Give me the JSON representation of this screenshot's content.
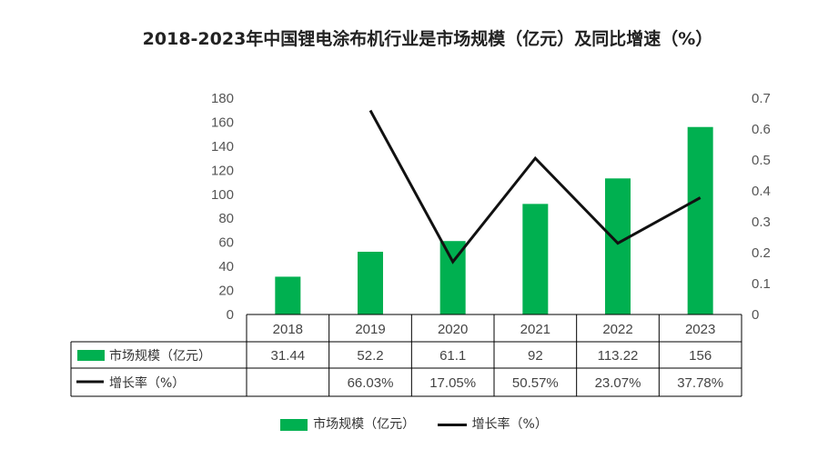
{
  "chart_title": "2018-2023年中国锂电涂布机行业是市场规模（亿元）及同比增速（%）",
  "colors": {
    "bar": "#00b050",
    "line": "#111111",
    "grid": "#d9d9d9",
    "table": "#000000"
  },
  "chart_data": {
    "type": "bar",
    "title": "2018-2023年中国锂电涂布机行业是市场规模（亿元）及同比增速（%）",
    "categories": [
      "2018",
      "2019",
      "2020",
      "2021",
      "2022",
      "2023"
    ],
    "series": [
      {
        "name": "市场规模（亿元）",
        "type": "bar",
        "axis": "left",
        "values": [
          31.44,
          52.2,
          61.1,
          92,
          113.22,
          156
        ],
        "labels": [
          "31.44",
          "52.2",
          "61.1",
          "92",
          "113.22",
          "156"
        ]
      },
      {
        "name": "增长率（%）",
        "type": "line",
        "axis": "right",
        "values": [
          null,
          0.6603,
          0.1705,
          0.5057,
          0.2307,
          0.3778
        ],
        "labels": [
          "",
          "66.03%",
          "17.05%",
          "50.57%",
          "23.07%",
          "37.78%"
        ]
      }
    ],
    "y_left": {
      "min": 0,
      "max": 180,
      "ticks": [
        "0",
        "20",
        "40",
        "60",
        "80",
        "100",
        "120",
        "140",
        "160",
        "180"
      ]
    },
    "y_right": {
      "min": 0,
      "max": 0.7,
      "ticks": [
        "0",
        "0.1",
        "0.2",
        "0.3",
        "0.4",
        "0.5",
        "0.6",
        "0.7"
      ]
    },
    "legend": {
      "position": "bottom"
    },
    "data_table": true
  }
}
